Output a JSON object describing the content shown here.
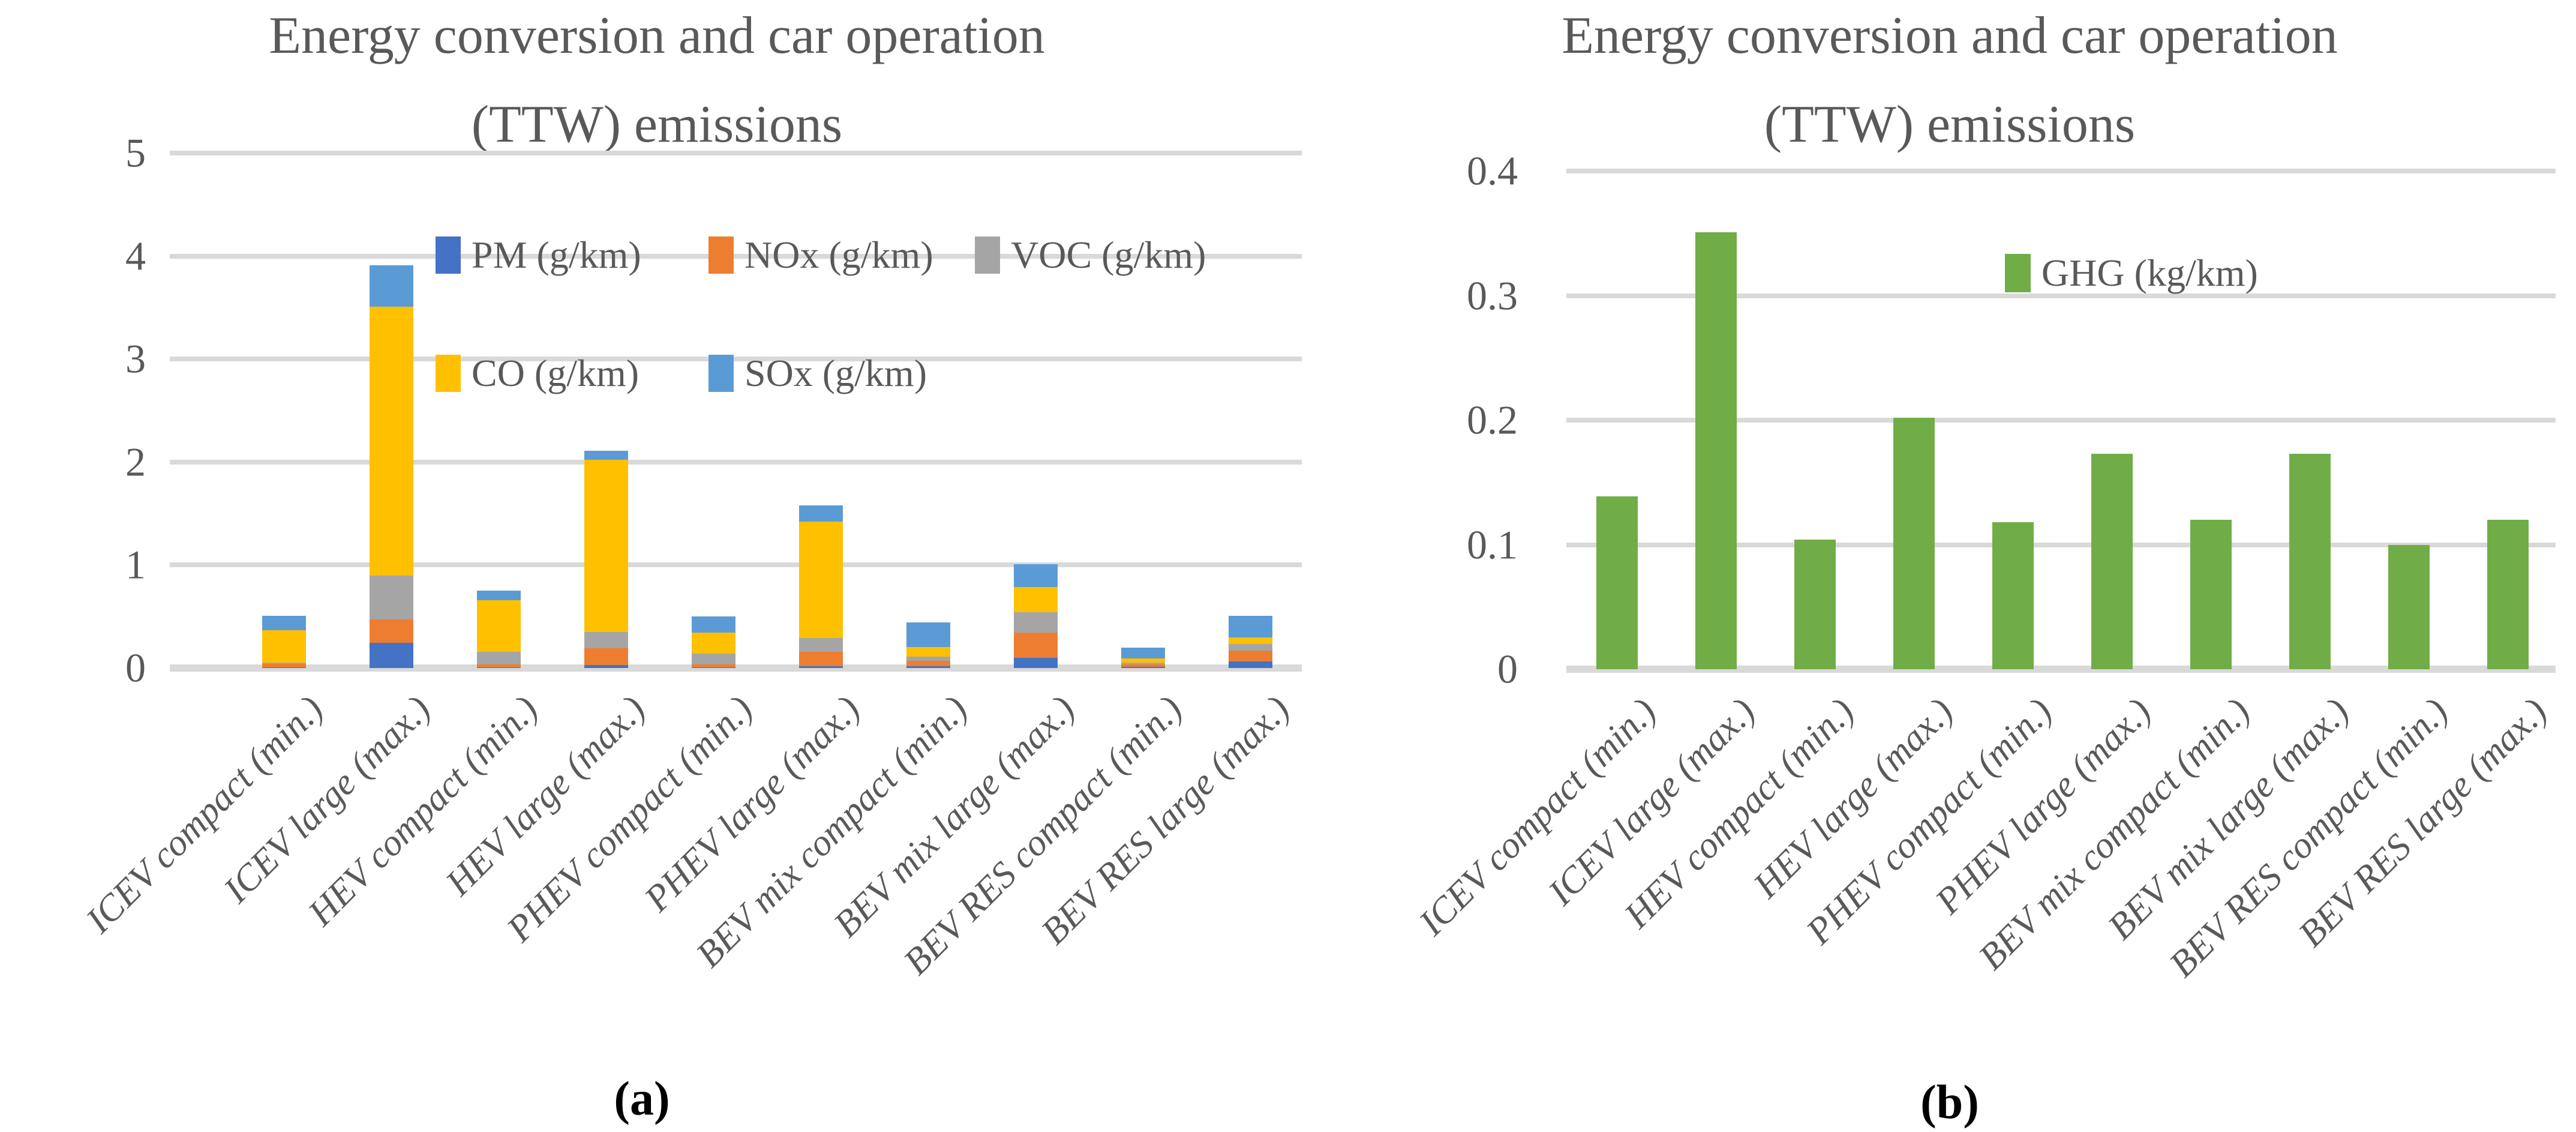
{
  "colors": {
    "text": "#595959",
    "gridline": "#D9D9D9",
    "pm": "#4472C4",
    "nox": "#ED7D31",
    "voc": "#A5A5A5",
    "co": "#FFC000",
    "sox": "#5B9BD5",
    "ghg": "#70AD47"
  },
  "chart_data": [
    {
      "type": "bar",
      "stacked": true,
      "title_line1": "Energy conversion and car operation",
      "title_line2": "(TTW) emissions",
      "caption": "(a)",
      "ylim": [
        0,
        5
      ],
      "yticks": [
        5,
        4,
        3,
        2,
        1,
        0
      ],
      "ytick_labels": [
        "5",
        "4",
        "3",
        "2",
        "1",
        "0"
      ],
      "grid": true,
      "legend_position": "inside-top",
      "categories": [
        "ICEV compact (min.)",
        "ICEV large (max.)",
        "HEV compact (min.)",
        "HEV large (max.)",
        "PHEV compact (min.)",
        "PHEV large (max.)",
        "BEV mix compact (min.)",
        "BEV mix large (max.)",
        "BEV RES compact (min.)",
        "BEV RES large (max.)"
      ],
      "series": [
        {
          "name": "PM (g/km)",
          "color": "#4472C4",
          "values": [
            0.005,
            0.245,
            0.005,
            0.03,
            0.005,
            0.02,
            0.015,
            0.1,
            0.01,
            0.065
          ]
        },
        {
          "name": "NOx (g/km)",
          "color": "#ED7D31",
          "values": [
            0.035,
            0.225,
            0.03,
            0.16,
            0.03,
            0.14,
            0.055,
            0.245,
            0.025,
            0.105
          ]
        },
        {
          "name": "VOC (g/km)",
          "color": "#A5A5A5",
          "values": [
            0.01,
            0.43,
            0.125,
            0.16,
            0.105,
            0.13,
            0.04,
            0.195,
            0.02,
            0.065
          ]
        },
        {
          "name": "CO (g/km)",
          "color": "#FFC000",
          "values": [
            0.32,
            2.61,
            0.5,
            1.67,
            0.205,
            1.13,
            0.095,
            0.245,
            0.04,
            0.065
          ]
        },
        {
          "name": "SOx (g/km)",
          "color": "#5B9BD5",
          "values": [
            0.14,
            0.4,
            0.09,
            0.09,
            0.155,
            0.16,
            0.24,
            0.225,
            0.105,
            0.21
          ]
        }
      ],
      "legend_rows": [
        [
          "PM (g/km)",
          "NOx (g/km)",
          "VOC (g/km)"
        ],
        [
          "CO (g/km)",
          "SOx (g/km)"
        ]
      ],
      "totals": [
        0.51,
        3.91,
        0.75,
        2.11,
        0.5,
        1.58,
        0.445,
        1.01,
        0.2,
        0.51
      ]
    },
    {
      "type": "bar",
      "stacked": false,
      "title_line1": "Energy conversion and car operation",
      "title_line2": "(TTW) emissions",
      "caption": "(b)",
      "ylim": [
        0,
        0.4
      ],
      "yticks": [
        0.4,
        0.3,
        0.2,
        0.1,
        0
      ],
      "ytick_labels": [
        "0.4",
        "0.3",
        "0.2",
        "0.1",
        "0"
      ],
      "grid": true,
      "legend_position": "inside-top",
      "categories": [
        "ICEV compact (min.)",
        "ICEV large (max.)",
        "HEV compact (min.)",
        "HEV large (max.)",
        "PHEV compact (min.)",
        "PHEV large (max.)",
        "BEV mix compact (min.)",
        "BEV mix large (max.)",
        "BEV RES compact (min.)",
        "BEV RES large (max.)"
      ],
      "series": [
        {
          "name": "GHG (kg/km)",
          "color": "#70AD47",
          "values": [
            0.139,
            0.351,
            0.104,
            0.202,
            0.118,
            0.173,
            0.12,
            0.173,
            0.1,
            0.12
          ]
        }
      ],
      "legend_rows": [
        [
          "GHG (kg/km)"
        ]
      ]
    }
  ]
}
